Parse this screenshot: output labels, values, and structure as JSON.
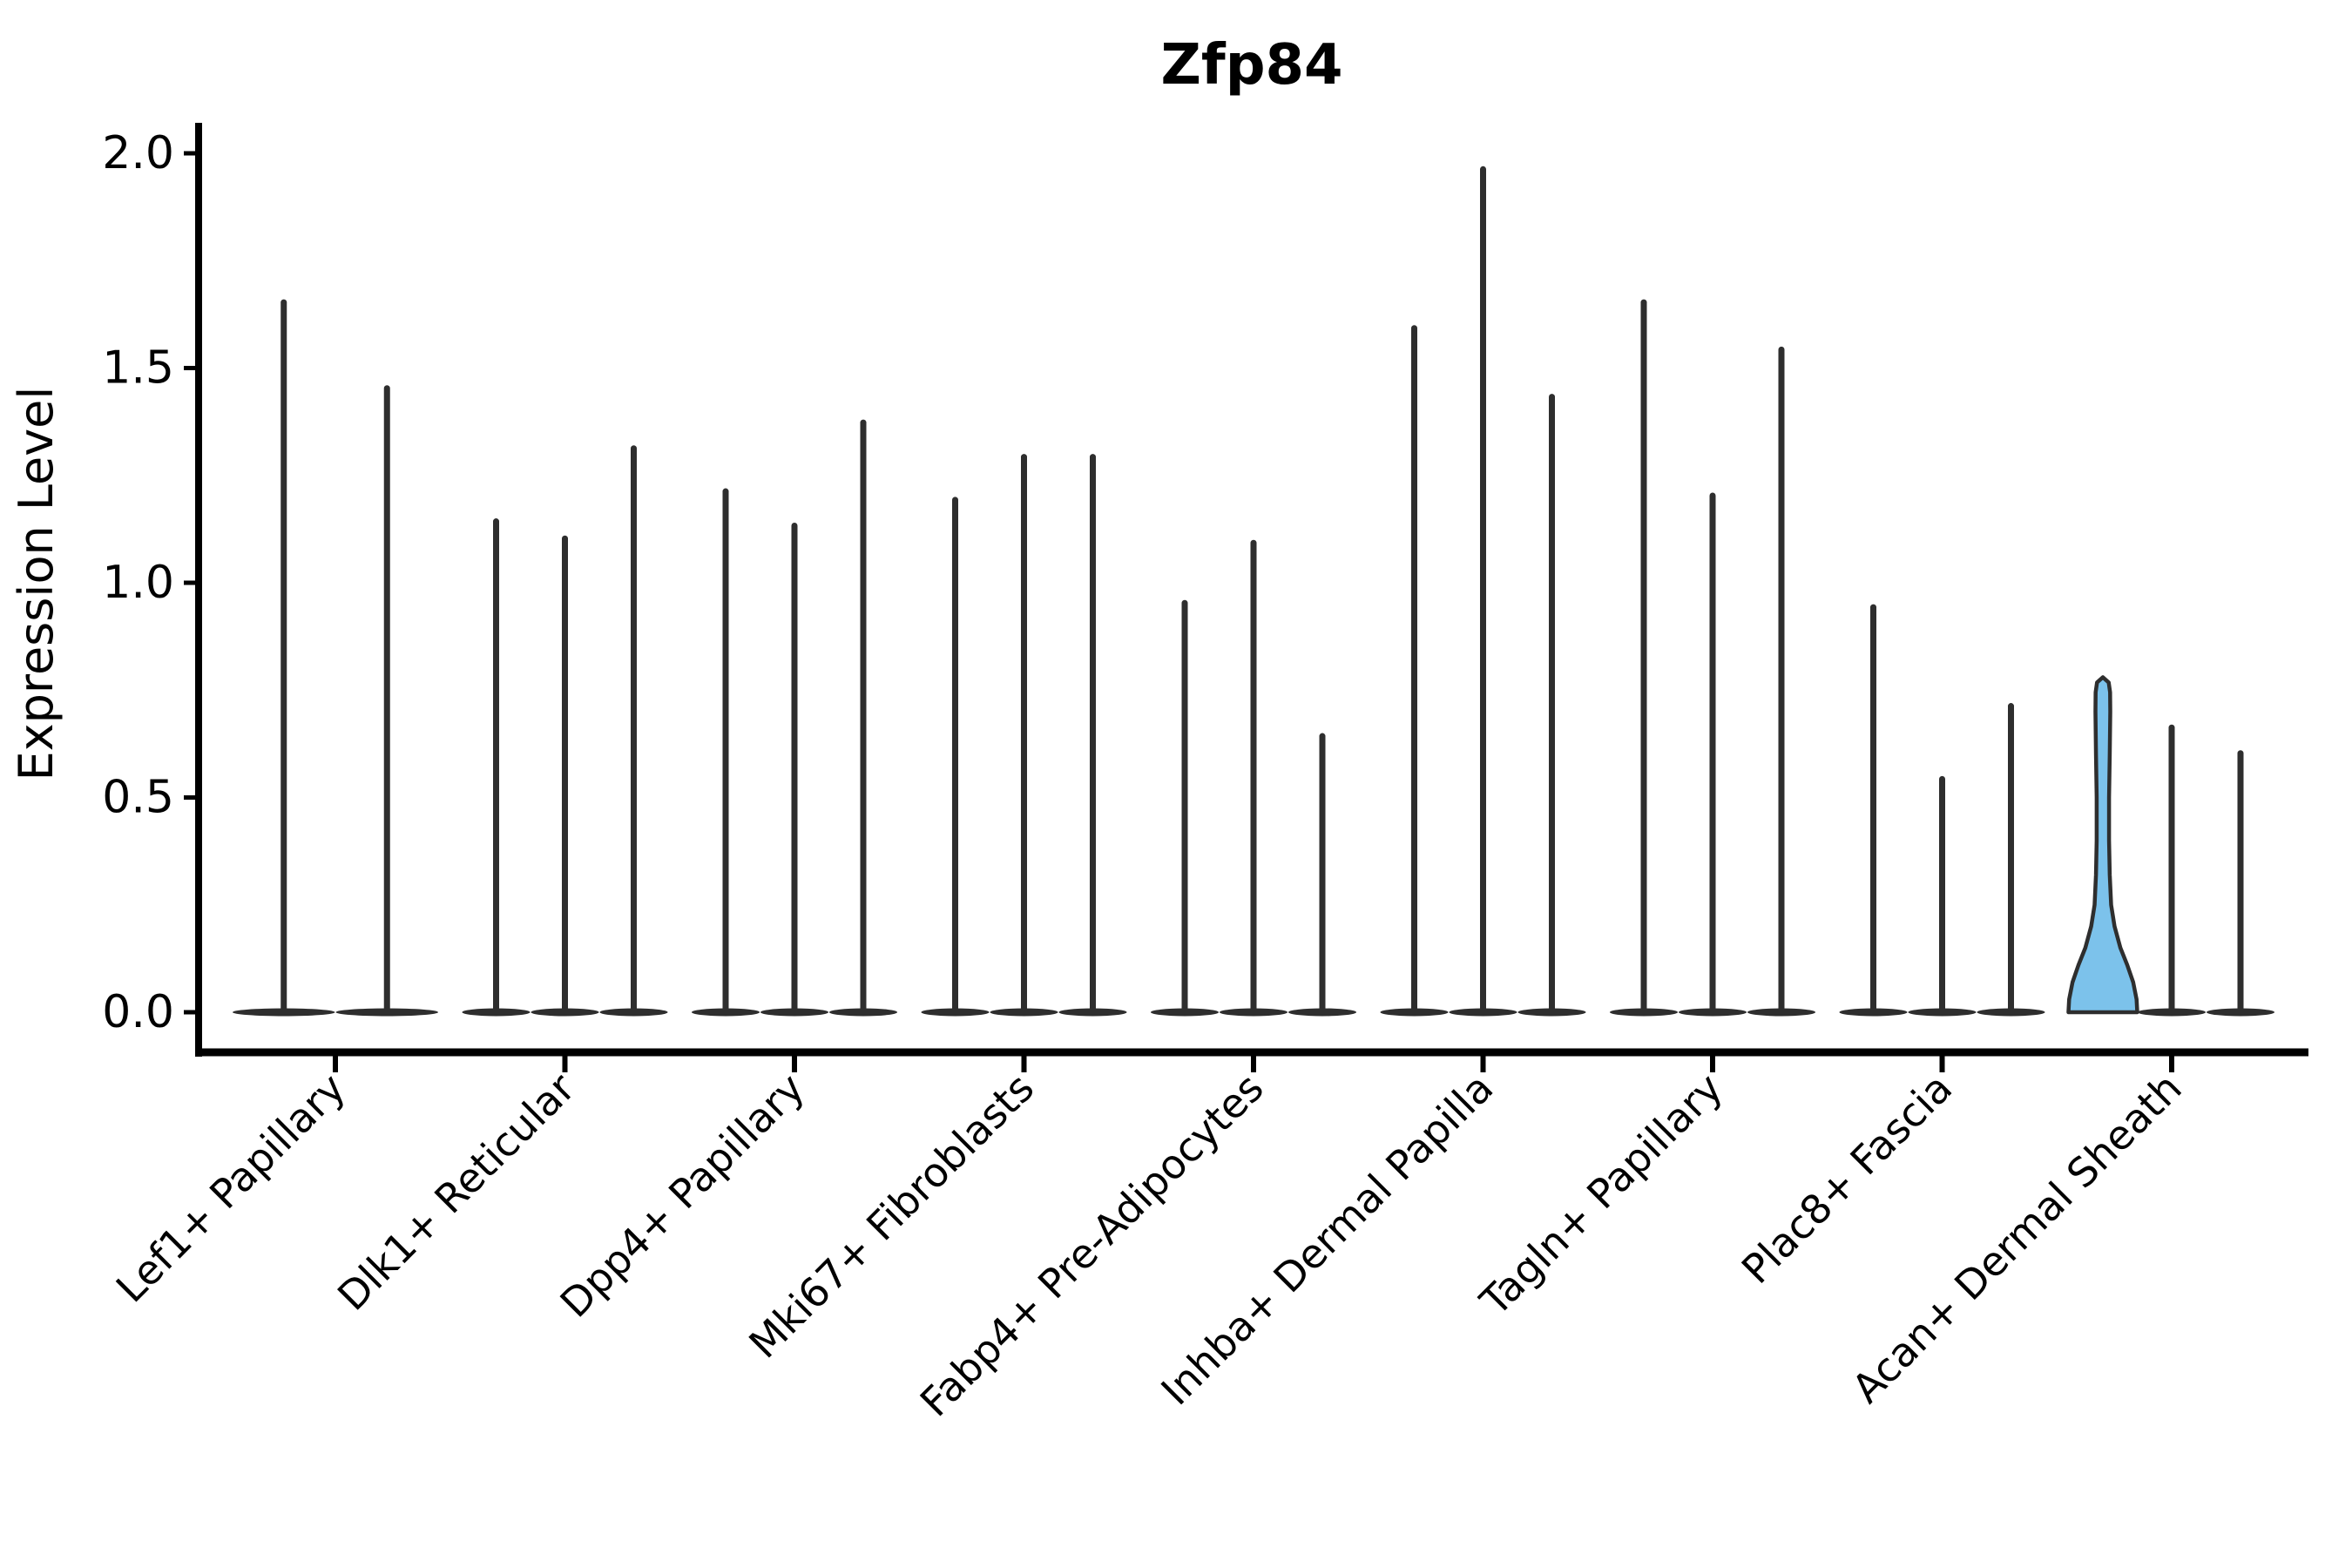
{
  "title": "Zfp84",
  "chart_data": {
    "type": "violin",
    "title": "Zfp84",
    "xlabel": "",
    "ylabel": "Expression Level",
    "ylim": [
      -0.09,
      2.07
    ],
    "grid": false,
    "legend_position": "none",
    "y_axis": {
      "label": "Expression Level",
      "tick_labels": [
        "0.0",
        "0.5",
        "1.0",
        "1.5",
        "2.0"
      ],
      "tick_values": [
        0.0,
        0.5,
        1.0,
        1.5,
        2.0
      ]
    },
    "categories": [
      "Lef1+ Papillary",
      "Dlk1+ Reticular",
      "Dpp4+ Papillary",
      "Mki67+ Fibroblasts",
      "Fabp4+ Pre-Adipocytes",
      "Inhba+ Dermal Papilla",
      "Tagln+ Papillary",
      "Plac8+ Fascia",
      "Acan+ Dermal Sheath"
    ],
    "highlighted_category": "Acan+ Dermal Sheath",
    "groups": [
      {
        "label": "Lef1+ Papillary",
        "violins": [
          {
            "max_expression": 1.66
          },
          {
            "max_expression": 1.46
          }
        ]
      },
      {
        "label": "Dlk1+ Reticular",
        "violins": [
          {
            "max_expression": 1.15
          },
          {
            "max_expression": 1.11
          },
          {
            "max_expression": 1.32
          }
        ]
      },
      {
        "label": "Dpp4+ Papillary",
        "violins": [
          {
            "max_expression": 1.22
          },
          {
            "max_expression": 1.14
          },
          {
            "max_expression": 1.38
          }
        ]
      },
      {
        "label": "Mki67+ Fibroblasts",
        "violins": [
          {
            "max_expression": 1.2
          },
          {
            "max_expression": 1.3
          },
          {
            "max_expression": 1.3
          }
        ]
      },
      {
        "label": "Fabp4+ Pre-Adipocytes",
        "violins": [
          {
            "max_expression": 0.96
          },
          {
            "max_expression": 1.1
          },
          {
            "max_expression": 0.65
          }
        ]
      },
      {
        "label": "Inhba+ Dermal Papilla",
        "violins": [
          {
            "max_expression": 1.6
          },
          {
            "max_expression": 1.97
          },
          {
            "max_expression": 1.44
          }
        ]
      },
      {
        "label": "Tagln+ Papillary",
        "violins": [
          {
            "max_expression": 1.66
          },
          {
            "max_expression": 1.21
          },
          {
            "max_expression": 1.55
          }
        ]
      },
      {
        "label": "Plac8+ Fascia",
        "violins": [
          {
            "max_expression": 0.95
          },
          {
            "max_expression": 0.55
          },
          {
            "max_expression": 0.72
          }
        ]
      },
      {
        "label": "Acan+ Dermal Sheath",
        "violins": [
          {
            "max_expression": 0.78,
            "highlighted": true,
            "density_profile": [
              [
                0.0,
                1.0
              ],
              [
                0.03,
                0.98
              ],
              [
                0.07,
                0.88
              ],
              [
                0.11,
                0.71
              ],
              [
                0.15,
                0.51
              ],
              [
                0.2,
                0.34
              ],
              [
                0.25,
                0.24
              ],
              [
                0.32,
                0.2
              ],
              [
                0.4,
                0.18
              ],
              [
                0.5,
                0.18
              ],
              [
                0.6,
                0.2
              ],
              [
                0.7,
                0.215
              ],
              [
                0.745,
                0.21
              ],
              [
                0.768,
                0.17
              ],
              [
                0.78,
                0.0
              ]
            ]
          },
          {
            "max_expression": 0.67
          },
          {
            "max_expression": 0.61
          }
        ]
      }
    ],
    "colors": {
      "violin_dark": "#2e2e2e",
      "highlight_fill": "#7CC2EB",
      "highlight_outline": "#2e2e2e",
      "axis": "#000000",
      "text": "#000000",
      "background": "#ffffff"
    }
  }
}
